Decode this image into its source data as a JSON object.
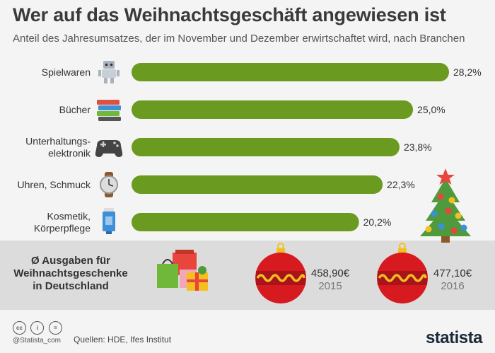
{
  "header": {
    "title": "Wer auf das Weihnachtsgeschäft angewiesen ist",
    "subtitle": "Anteil des Jahresumsatzes, der im November und Dezember erwirtschaftet wird, nach Branchen"
  },
  "chart_data": {
    "type": "bar",
    "orientation": "horizontal",
    "categories": [
      "Spielwaren",
      "Bücher",
      "Unterhaltungs-\nelektronik",
      "Uhren, Schmuck",
      "Kosmetik,\nKörperpflege"
    ],
    "values": [
      28.2,
      25.0,
      23.8,
      22.3,
      20.2
    ],
    "value_labels": [
      "28,2%",
      "25,0%",
      "23,8%",
      "22,3%",
      "20,2%"
    ],
    "icons": [
      "robot-icon",
      "books-icon",
      "gamepad-icon",
      "watch-icon",
      "cream-tube-icon"
    ],
    "bar_color": "#6a9a1f",
    "grid": false,
    "legend": "none"
  },
  "spending": {
    "label": "Ø Ausgaben für\nWeihnachtsgeschenke\nin Deutschland",
    "items": [
      {
        "amount": "458,90€",
        "year": "2015"
      },
      {
        "amount": "477,10€",
        "year": "2016"
      }
    ],
    "ornament_color": "#d71920"
  },
  "footer": {
    "license_icons": [
      "cc-icon",
      "by-icon",
      "nd-icon"
    ],
    "license_glyphs": [
      "cc",
      "i",
      "="
    ],
    "handle": "@Statista_com",
    "sources": "Quellen: HDE, Ifes Institut",
    "logo": "statista"
  }
}
